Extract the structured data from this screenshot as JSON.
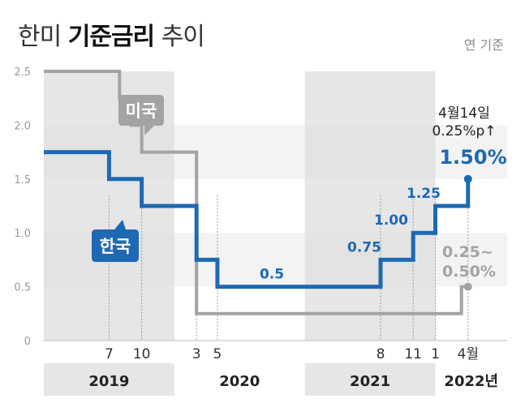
{
  "header": {
    "title_pre": "한미",
    "title_bold": "기준금리",
    "title_post": "추이",
    "unit_note": "연 기준"
  },
  "chart_data": {
    "type": "line",
    "step": true,
    "title": "한미 기준금리 추이",
    "ylim": [
      0,
      2.5
    ],
    "yticks": [
      "0",
      "0.5",
      "1.0",
      "1.5",
      "2.0",
      "2.5"
    ],
    "xlim": [
      2019.0,
      2022.55
    ],
    "year_labels": [
      {
        "label": "2019",
        "start": 2019.0,
        "end": 2020.0
      },
      {
        "label": "2020",
        "start": 2020.0,
        "end": 2021.0
      },
      {
        "label": "2021",
        "start": 2021.0,
        "end": 2022.0
      },
      {
        "label": "2022년",
        "start": 2022.0,
        "end": 2022.55
      }
    ],
    "shaded_years": [
      "2019",
      "2021"
    ],
    "month_ticks": [
      {
        "label": "7",
        "x": 2019.5
      },
      {
        "label": "10",
        "x": 2019.75
      },
      {
        "label": "3",
        "x": 2020.17
      },
      {
        "label": "5",
        "x": 2020.33
      },
      {
        "label": "8",
        "x": 2021.58
      },
      {
        "label": "11",
        "x": 2021.83
      },
      {
        "label": "1",
        "x": 2022.0
      },
      {
        "label": "4월",
        "x": 2022.25
      }
    ],
    "series": [
      {
        "name": "미국",
        "color": "#a3a3a3",
        "points": [
          [
            2019.0,
            2.5
          ],
          [
            2019.58,
            2.25
          ],
          [
            2019.67,
            2.0
          ],
          [
            2019.75,
            1.75
          ],
          [
            2020.17,
            0.25
          ],
          [
            2022.2,
            0.5
          ]
        ],
        "end": 2022.25,
        "end_label": [
          "0.25~",
          "0.50%"
        ]
      },
      {
        "name": "한국",
        "color": "#1d69b3",
        "points": [
          [
            2019.0,
            1.75
          ],
          [
            2019.5,
            1.5
          ],
          [
            2019.75,
            1.25
          ],
          [
            2020.17,
            0.75
          ],
          [
            2020.33,
            0.5
          ],
          [
            2021.58,
            0.75
          ],
          [
            2021.83,
            1.0
          ],
          [
            2022.0,
            1.25
          ],
          [
            2022.25,
            1.5
          ]
        ],
        "end": 2022.25,
        "end_label": [
          "1.50%"
        ]
      }
    ],
    "step_labels": [
      "0.5",
      "0.75",
      "1.00",
      "1.25"
    ],
    "annotation": [
      "4월14일",
      "0.25%p↑"
    ],
    "colors": {
      "korea": "#1d69b3",
      "us": "#a3a3a3",
      "shade": "#dedede",
      "grid_band": "#f3f3f3"
    }
  }
}
